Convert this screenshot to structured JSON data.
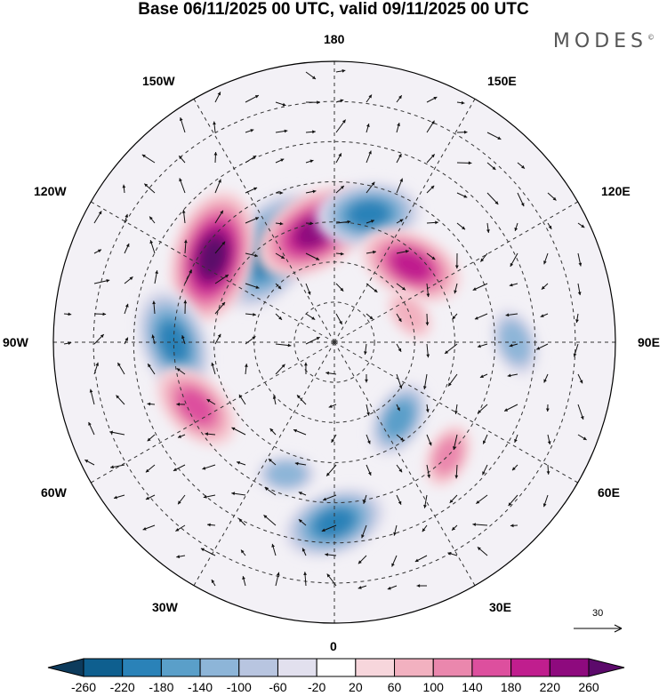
{
  "title": "Base 06/11/2025 00 UTC, valid 09/11/2025 00 UTC",
  "brand": "MODES",
  "brand_mark": "©",
  "longitude_labels": {
    "top": "180",
    "top_right": "150E",
    "right_upper": "120E",
    "right": "90E",
    "right_lower": "60E",
    "bottom_right": "30E",
    "bottom": "0",
    "bottom_left": "30W",
    "left_lower": "60W",
    "left": "90W",
    "left_upper": "120W",
    "top_left": "150W"
  },
  "reference_vector": {
    "label": "30",
    "icon": "arrow-right-icon"
  },
  "colorbar": {
    "labels": [
      "-260",
      "-220",
      "-180",
      "-140",
      "-100",
      "-60",
      "-20",
      "20",
      "60",
      "100",
      "140",
      "180",
      "220",
      "260"
    ],
    "colors": [
      "#0d3b5c",
      "#0e5f8f",
      "#2a82b8",
      "#5a9fc9",
      "#8db5d8",
      "#b8c5e0",
      "#e2e0ee",
      "#ffffff",
      "#f7d6dc",
      "#f2b1c0",
      "#ea87ad",
      "#dd4f9e",
      "#c01e8e",
      "#8e0a7e",
      "#5c0a6b"
    ]
  },
  "anomaly_centers": [
    {
      "lon": -145,
      "lat": 62,
      "value": -220
    },
    {
      "lon": -125,
      "lat": 53,
      "value": 240
    },
    {
      "lon": -170,
      "lat": 62,
      "value": 200
    },
    {
      "lon": 165,
      "lat": 57,
      "value": -160
    },
    {
      "lon": 135,
      "lat": 63,
      "value": 160
    },
    {
      "lon": -90,
      "lat": 50,
      "value": -170
    },
    {
      "lon": -65,
      "lat": 52,
      "value": 140
    },
    {
      "lon": 90,
      "lat": 45,
      "value": -90
    },
    {
      "lon": 40,
      "lat": 65,
      "value": -110
    },
    {
      "lon": 0,
      "lat": 45,
      "value": -160
    },
    {
      "lon": 45,
      "lat": 50,
      "value": 80
    },
    {
      "lon": -20,
      "lat": 55,
      "value": -70
    },
    {
      "lon": 110,
      "lat": 70,
      "value": 60
    }
  ]
}
